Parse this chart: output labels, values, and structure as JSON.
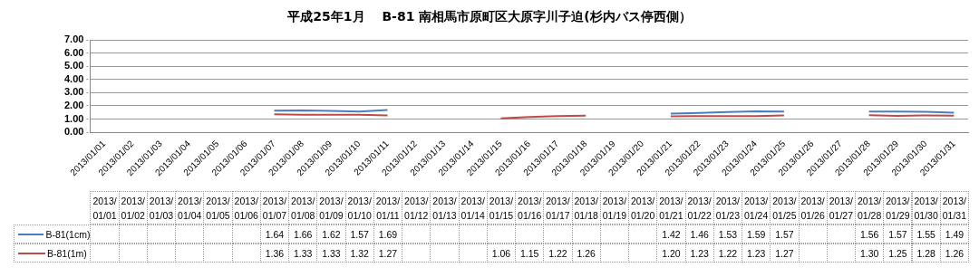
{
  "chart_data": {
    "type": "line",
    "title": "平成25年1月　 B-81 南相馬市原町区大原字川子迫(杉内バス停西側）",
    "categories": [
      "2013/01/01",
      "2013/01/02",
      "2013/01/03",
      "2013/01/04",
      "2013/01/05",
      "2013/01/06",
      "2013/01/07",
      "2013/01/08",
      "2013/01/09",
      "2013/01/10",
      "2013/01/11",
      "2013/01/12",
      "2013/01/13",
      "2013/01/14",
      "2013/01/15",
      "2013/01/16",
      "2013/01/17",
      "2013/01/18",
      "2013/01/19",
      "2013/01/20",
      "2013/01/21",
      "2013/01/22",
      "2013/01/23",
      "2013/01/24",
      "2013/01/25",
      "2013/01/26",
      "2013/01/27",
      "2013/01/28",
      "2013/01/29",
      "2013/01/30",
      "2013/01/31"
    ],
    "series": [
      {
        "name": "B-81(1cm)",
        "color": "#4a7ebb",
        "values": [
          null,
          null,
          null,
          null,
          null,
          null,
          1.64,
          1.66,
          1.62,
          1.57,
          1.69,
          null,
          null,
          null,
          null,
          null,
          null,
          null,
          null,
          null,
          1.42,
          1.46,
          1.53,
          1.59,
          1.57,
          null,
          null,
          1.56,
          1.57,
          1.55,
          1.49
        ],
        "value_labels": [
          null,
          null,
          null,
          null,
          null,
          null,
          "1.64",
          "1.66",
          "1.62",
          "1.57",
          "1.69",
          null,
          null,
          null,
          null,
          null,
          null,
          null,
          null,
          null,
          "1.42",
          "1.46",
          "1.53",
          "1.59",
          "1.57",
          null,
          null,
          "1.56",
          "1.57",
          "1.55",
          "1.49"
        ]
      },
      {
        "name": "B-81(1m)",
        "color": "#be4b48",
        "values": [
          null,
          null,
          null,
          null,
          null,
          null,
          1.36,
          1.33,
          1.33,
          1.32,
          1.27,
          null,
          null,
          null,
          1.06,
          1.15,
          1.22,
          1.26,
          null,
          null,
          1.2,
          1.23,
          1.22,
          1.23,
          1.27,
          null,
          null,
          1.3,
          1.25,
          1.28,
          1.26
        ],
        "value_labels": [
          null,
          null,
          null,
          null,
          null,
          null,
          "1.36",
          "1.33",
          "1.33",
          "1.32",
          "1.27",
          null,
          null,
          null,
          "1.06",
          "1.15",
          "1.22",
          "1.26",
          null,
          null,
          "1.20",
          "1.23",
          "1.22",
          "1.23",
          "1.27",
          null,
          null,
          "1.30",
          "1.25",
          "1.28",
          "1.26"
        ]
      }
    ],
    "ylim": [
      0,
      7
    ],
    "yticks": [
      {
        "value": 0,
        "label": "0.00"
      },
      {
        "value": 1,
        "label": "1.00"
      },
      {
        "value": 2,
        "label": "2.00"
      },
      {
        "value": 3,
        "label": "3.00"
      },
      {
        "value": 4,
        "label": "4.00"
      },
      {
        "value": 5,
        "label": "5.00"
      },
      {
        "value": 6,
        "label": "6.00"
      },
      {
        "value": 7,
        "label": "7.00"
      }
    ],
    "grid": "y",
    "legend": "bottom",
    "marker": "none",
    "line_style": "solid"
  }
}
